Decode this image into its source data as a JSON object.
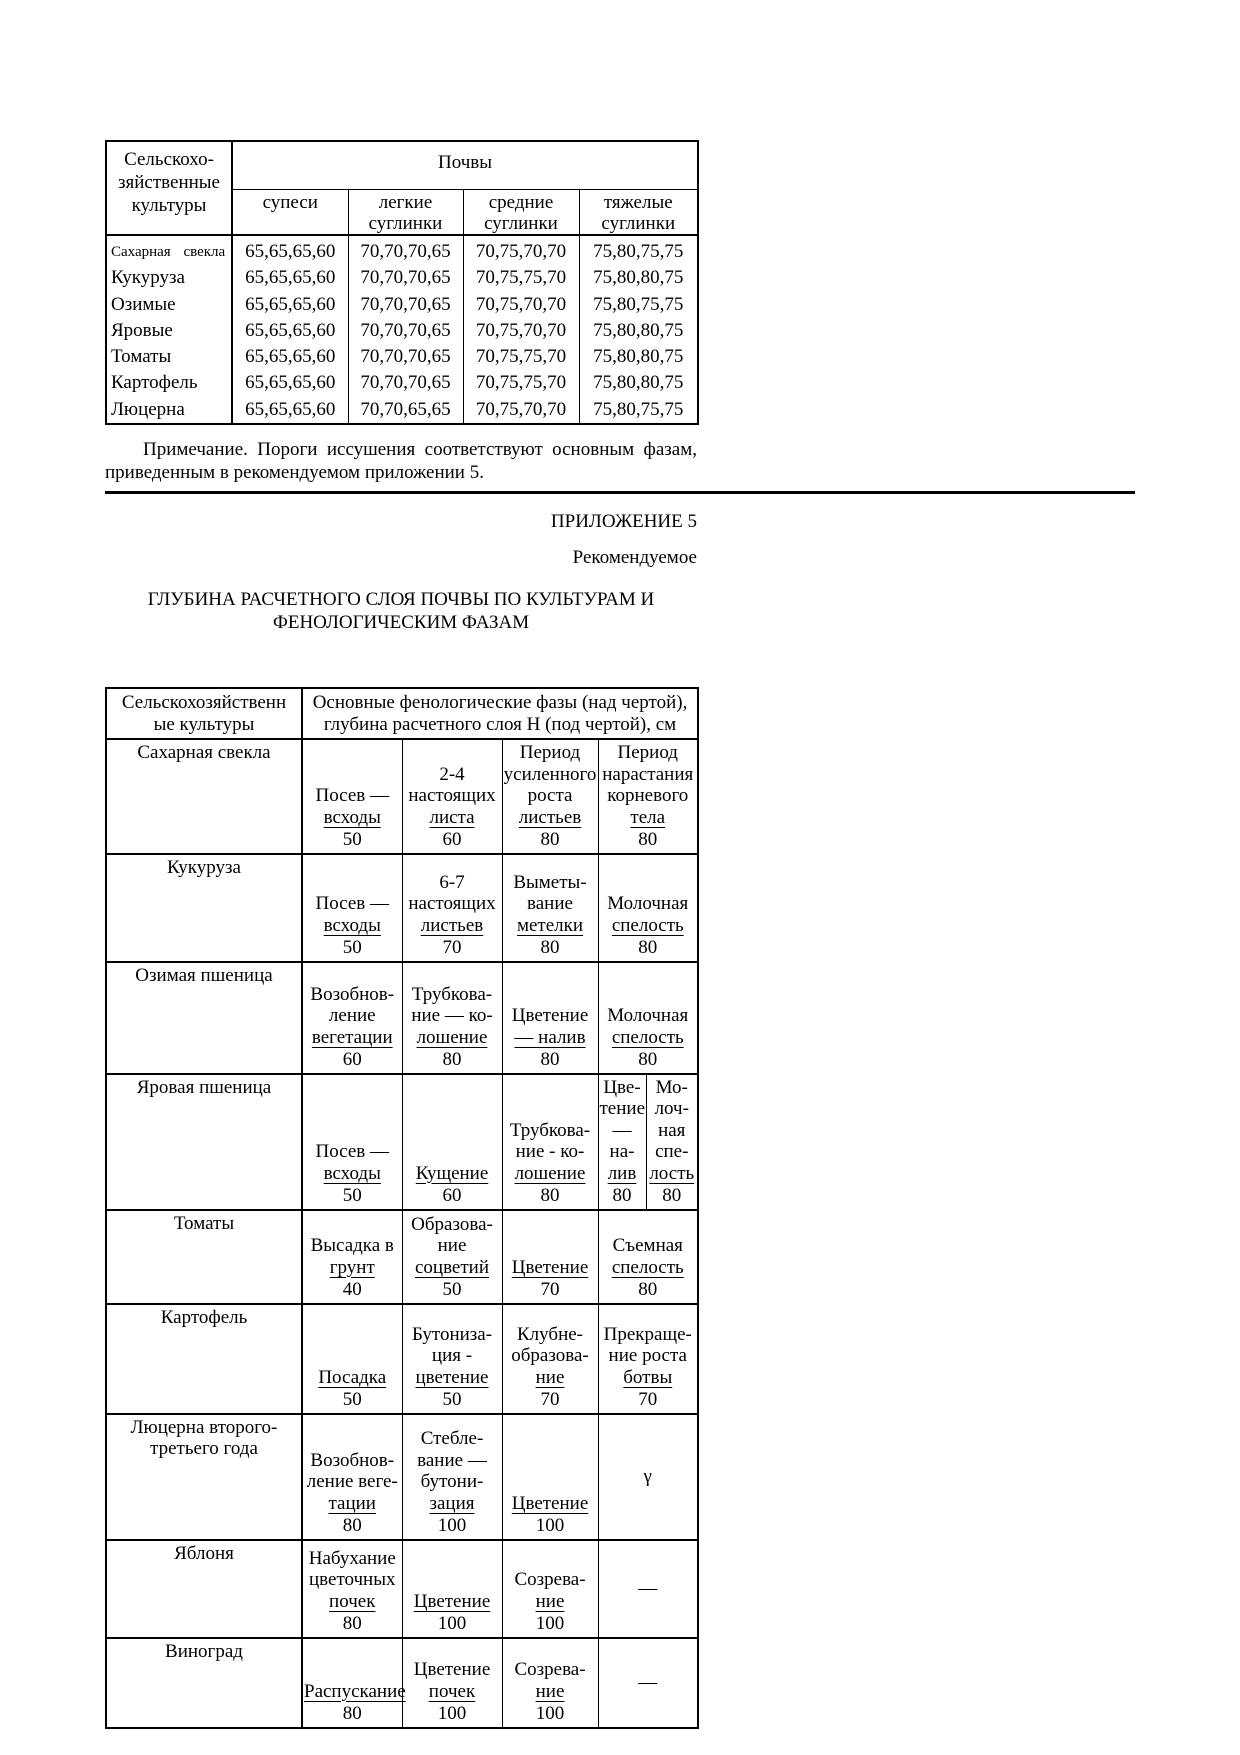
{
  "page": {
    "background": "#ffffff",
    "text_color": "#000000",
    "border_color": "#000000"
  },
  "table1": {
    "header": {
      "crops_label": "Сельскохо-\nзяйственные\nкультуры",
      "group_label": "Почвы",
      "columns": [
        "супеси",
        "легкие суглинки",
        "средние суглинки",
        "тяжелые суглинки"
      ]
    },
    "rows": [
      {
        "crop": "Сахарная свекла",
        "compact": true,
        "values": [
          "65,65,65,60",
          "70,70,70,65",
          "70,75,70,70",
          "75,80,75,75"
        ]
      },
      {
        "crop": "Кукуруза",
        "values": [
          "65,65,65,60",
          "70,70,70,65",
          "70,75,75,70",
          "75,80,80,75"
        ]
      },
      {
        "crop": "Озимые",
        "values": [
          "65,65,65,60",
          "70,70,70,65",
          "70,75,70,70",
          "75,80,75,75"
        ]
      },
      {
        "crop": "Яровые",
        "values": [
          "65,65,65,60",
          "70,70,70,65",
          "70,75,70,70",
          "75,80,80,75"
        ]
      },
      {
        "crop": "Томаты",
        "values": [
          "65,65,65,60",
          "70,70,70,65",
          "70,75,75,70",
          "75,80,80,75"
        ]
      },
      {
        "crop": "Картофель",
        "values": [
          "65,65,65,60",
          "70,70,70,65",
          "70,75,75,70",
          "75,80,80,75"
        ]
      },
      {
        "crop": "Люцерна",
        "values": [
          "65,65,65,60",
          "70,70,65,65",
          "70,75,70,70",
          "75,80,75,75"
        ]
      }
    ]
  },
  "note": {
    "line1": "Примечание. Пороги иссушения соответствуют основным фазам,",
    "line2": "приведенным в рекомендуемом приложении 5."
  },
  "appendix": {
    "label": "ПРИЛОЖЕНИЕ 5",
    "sublabel": "Рекомендуемое"
  },
  "title": {
    "line1": "ГЛУБИНА РАСЧЕТНОГО СЛОЯ ПОЧВЫ ПО КУЛЬТУРАМ И",
    "line2": "ФЕНОЛОГИЧЕСКИМ ФАЗАМ"
  },
  "table2": {
    "header": {
      "crops_label": "Сельскохозяйственн\nые культуры",
      "phases_label": "Основные фенологические фазы (над чертой),\nглубина расчетного слоя Н (под чертой), см"
    },
    "rows": [
      {
        "crop": [
          "Сахарная свекла"
        ],
        "cells": [
          {
            "lines": [
              "Посев —",
              "всходы"
            ],
            "depth": "50"
          },
          {
            "lines": [
              "2-4",
              "настоящих",
              "листа"
            ],
            "depth": "60"
          },
          {
            "lines": [
              "Период",
              "усиленного",
              "роста",
              "листьев"
            ],
            "depth": "80"
          },
          {
            "lines": [
              "Период",
              "нарастания",
              "корневого",
              "тела"
            ],
            "depth": "80"
          }
        ]
      },
      {
        "crop": [
          "Кукуруза"
        ],
        "cells": [
          {
            "lines": [
              "Посев —",
              "всходы"
            ],
            "depth": "50"
          },
          {
            "lines": [
              "6-7",
              "настоящих",
              "листьев"
            ],
            "depth": "70"
          },
          {
            "lines": [
              "Выметы-",
              "вание",
              "метелки"
            ],
            "depth": "80"
          },
          {
            "lines": [
              "Молочная",
              "спелость"
            ],
            "depth": "80"
          }
        ]
      },
      {
        "crop": [
          "Озимая пшеница"
        ],
        "cells": [
          {
            "lines": [
              "Возобнов-",
              "ление",
              "вегетации"
            ],
            "depth": "60"
          },
          {
            "lines": [
              "Трубкова-",
              "ние — ко-",
              "лошение"
            ],
            "depth": "80"
          },
          {
            "lines": [
              "Цветение",
              "— налив"
            ],
            "depth": "80"
          },
          {
            "lines": [
              "Молочная",
              "спелость"
            ],
            "depth": "80"
          }
        ]
      },
      {
        "crop": [
          "Яровая пшеница"
        ],
        "cells": [
          {
            "lines": [
              "Посев —",
              "всходы"
            ],
            "depth": "50"
          },
          {
            "lines": [
              "Кущение"
            ],
            "depth": "60"
          },
          {
            "lines": [
              "Трубкова-",
              "ние - ко-",
              "лошение"
            ],
            "depth": "80"
          },
          {
            "lines": [
              "Цве-",
              "тение",
              "—",
              "на-",
              "лив"
            ],
            "depth": "80"
          },
          {
            "lines": [
              "Мо-",
              "лоч-",
              "ная",
              "спе-",
              "лость"
            ],
            "depth": "80"
          }
        ]
      },
      {
        "crop": [
          "Томаты"
        ],
        "cells": [
          {
            "lines": [
              "Высадка в",
              "грунт"
            ],
            "depth": "40"
          },
          {
            "lines": [
              "Образова-",
              "ние",
              "соцветий"
            ],
            "depth": "50"
          },
          {
            "lines": [
              "Цветение"
            ],
            "depth": "70"
          },
          {
            "lines": [
              "Съемная",
              "спелость"
            ],
            "depth": "80"
          }
        ]
      },
      {
        "crop": [
          "Картофель"
        ],
        "cells": [
          {
            "lines": [
              "Посадка"
            ],
            "depth": "50"
          },
          {
            "lines": [
              "Бутониза-",
              "ция -",
              "цветение"
            ],
            "depth": "50"
          },
          {
            "lines": [
              "Клубне-",
              "образова-",
              "ние"
            ],
            "depth": "70"
          },
          {
            "lines": [
              "Прекраще-",
              "ние роста",
              "ботвы"
            ],
            "depth": "70"
          }
        ]
      },
      {
        "crop": [
          "Люцерна второго-",
          "третьего года"
        ],
        "cells": [
          {
            "lines": [
              "Возобнов-",
              "ление веге-",
              "тации"
            ],
            "depth": "80"
          },
          {
            "lines": [
              "Стебле-",
              "вание —",
              "бутони-",
              "зация"
            ],
            "depth": "100"
          },
          {
            "lines": [
              "Цветение"
            ],
            "depth": "100"
          },
          {
            "symbol": "γ"
          }
        ]
      },
      {
        "crop": [
          "Яблоня"
        ],
        "cells": [
          {
            "lines": [
              "Набухание",
              "цветочных",
              "почек"
            ],
            "depth": "80"
          },
          {
            "lines": [
              "Цветение"
            ],
            "depth": "100"
          },
          {
            "lines": [
              "Созрева-",
              "ние"
            ],
            "depth": "100"
          },
          {
            "symbol": "—"
          }
        ]
      },
      {
        "crop": [
          "Виноград"
        ],
        "cells": [
          {
            "lines": [
              "Распускание"
            ],
            "depth": "80"
          },
          {
            "lines": [
              "Цветение",
              "почек"
            ],
            "depth": "100"
          },
          {
            "lines": [
              "Созрева-",
              "ние"
            ],
            "depth": "100"
          },
          {
            "symbol": "—"
          }
        ]
      }
    ]
  }
}
